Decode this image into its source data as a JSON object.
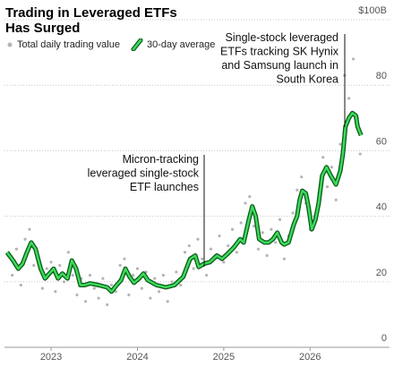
{
  "chart_data": {
    "type": "line",
    "title": "Trading in Leveraged ETFs Has Surged",
    "series": [
      {
        "name": "Total daily trading value",
        "type": "scatter",
        "color": "#b5b5b5",
        "x": [
          2022.5,
          2022.55,
          2022.6,
          2022.65,
          2022.7,
          2022.75,
          2022.8,
          2022.85,
          2022.9,
          2022.95,
          2023.0,
          2023.05,
          2023.1,
          2023.15,
          2023.2,
          2023.25,
          2023.3,
          2023.35,
          2023.4,
          2023.45,
          2023.5,
          2023.55,
          2023.6,
          2023.65,
          2023.7,
          2023.75,
          2023.8,
          2023.85,
          2023.9,
          2023.95,
          2024.0,
          2024.05,
          2024.1,
          2024.15,
          2024.2,
          2024.25,
          2024.3,
          2024.35,
          2024.4,
          2024.45,
          2024.5,
          2024.55,
          2024.6,
          2024.65,
          2024.7,
          2024.75,
          2024.8,
          2024.85,
          2024.9,
          2024.95,
          2025.0,
          2025.05,
          2025.1,
          2025.15,
          2025.2,
          2025.25,
          2025.3,
          2025.35,
          2025.4,
          2025.45,
          2025.5,
          2025.55,
          2025.6,
          2025.65,
          2025.7,
          2025.75,
          2025.8,
          2025.85,
          2025.9,
          2025.95,
          2026.0,
          2026.05,
          2026.1,
          2026.15,
          2026.2,
          2026.25,
          2026.3,
          2026.35,
          2026.4,
          2026.45,
          2026.5,
          2026.55,
          2026.58
        ],
        "values": [
          28,
          22,
          30,
          19,
          33,
          36,
          25,
          27,
          18,
          24,
          26,
          17,
          25,
          20,
          29,
          22,
          16,
          21,
          14,
          22,
          18,
          15,
          21,
          13,
          19,
          17,
          25,
          27,
          16,
          22,
          24,
          18,
          23,
          15,
          21,
          17,
          22,
          14,
          20,
          23,
          19,
          29,
          31,
          24,
          33,
          27,
          22,
          30,
          28,
          34,
          26,
          31,
          36,
          29,
          38,
          44,
          46,
          37,
          30,
          35,
          28,
          36,
          32,
          39,
          27,
          34,
          41,
          48,
          52,
          44,
          36,
          40,
          47,
          58,
          49,
          55,
          45,
          62,
          83,
          76,
          88,
          70,
          59
        ]
      },
      {
        "name": "30-day average",
        "type": "line",
        "color": "#3ddc5a",
        "x": [
          2022.49,
          2022.56,
          2022.62,
          2022.67,
          2022.72,
          2022.77,
          2022.82,
          2022.88,
          2022.93,
          2022.98,
          2023.03,
          2023.08,
          2023.13,
          2023.19,
          2023.24,
          2023.29,
          2023.34,
          2023.39,
          2023.45,
          2023.55,
          2023.65,
          2023.7,
          2023.76,
          2023.81,
          2023.86,
          2023.91,
          2023.96,
          2024.02,
          2024.07,
          2024.12,
          2024.22,
          2024.33,
          2024.43,
          2024.53,
          2024.61,
          2024.67,
          2024.71,
          2024.77,
          2024.84,
          2024.92,
          2024.98,
          2025.05,
          2025.12,
          2025.19,
          2025.23,
          2025.29,
          2025.33,
          2025.37,
          2025.41,
          2025.47,
          2025.52,
          2025.57,
          2025.62,
          2025.67,
          2025.7,
          2025.75,
          2025.81,
          2025.85,
          2025.88,
          2025.91,
          2025.95,
          2025.98,
          2026.02,
          2026.06,
          2026.1,
          2026.14,
          2026.19,
          2026.24,
          2026.3,
          2026.35,
          2026.38,
          2026.41,
          2026.45,
          2026.49,
          2026.53,
          2026.55,
          2026.59
        ],
        "values": [
          29,
          26.5,
          24,
          25.5,
          29,
          32,
          30,
          24,
          21,
          22.5,
          24,
          21,
          22.5,
          21,
          26.5,
          24,
          19,
          19,
          19.5,
          19,
          18.3,
          17,
          19,
          20.5,
          24,
          21.5,
          19.7,
          21,
          22.5,
          20.5,
          19,
          18.3,
          19,
          21.5,
          27,
          28,
          24.5,
          25.5,
          26,
          28,
          27,
          28.7,
          30.6,
          33,
          32,
          38.8,
          43,
          40,
          33,
          32,
          32,
          33,
          35,
          32,
          31.4,
          32,
          37.4,
          40,
          45,
          47.8,
          47,
          43,
          36,
          38.8,
          44,
          52.4,
          55,
          52.4,
          49.7,
          53.8,
          59,
          67.4,
          70,
          71.5,
          70.7,
          67.4,
          64.7
        ]
      }
    ],
    "xlim": [
      2022.46,
      2026.92
    ],
    "xticks": [
      2023,
      2024,
      2025,
      2026
    ],
    "ylim": [
      0,
      100
    ],
    "yticks": [
      0,
      20,
      40,
      60,
      80,
      {
        "value": 100,
        "label": "$100B"
      }
    ],
    "grid": true,
    "annotations": [
      {
        "lines": [
          "Micron-tracking",
          "leveraged single-stock",
          "ETF launches"
        ]
      },
      {
        "lines": [
          "Single-stock leveraged",
          "ETFs tracking SK Hynix",
          "and Samsung launch in",
          "South Korea"
        ]
      }
    ]
  }
}
